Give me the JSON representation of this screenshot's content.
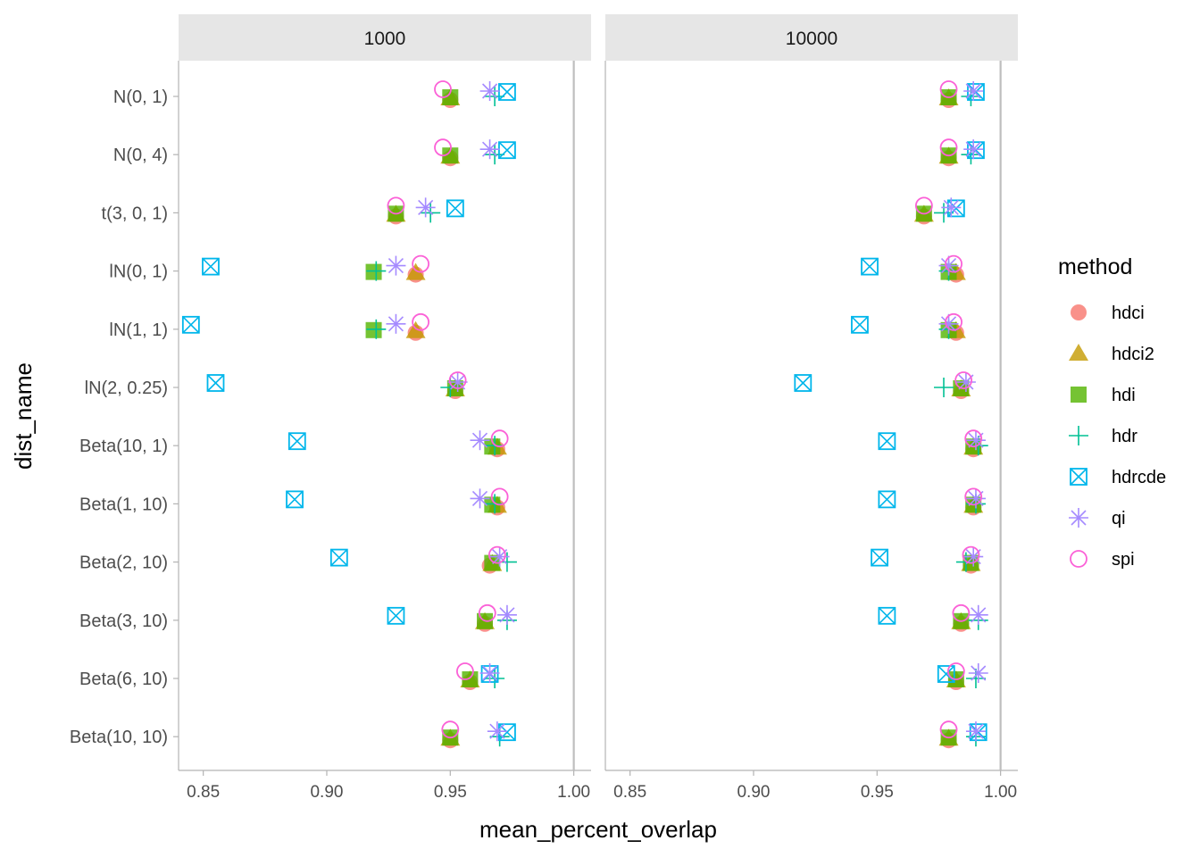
{
  "chart_data": {
    "type": "scatter",
    "x_label": "mean_percent_overlap",
    "y_label": "dist_name",
    "x_ticks": [
      0.85,
      0.9,
      0.95,
      1.0
    ],
    "x_tick_labels": [
      "0.85",
      "0.90",
      "0.95",
      "1.00"
    ],
    "xlim": [
      0.84,
      1.007
    ],
    "reference_line_x": 1.0,
    "grid": false,
    "legend_position": "right",
    "categories": [
      "N(0, 1)",
      "N(0, 4)",
      "t(3, 0, 1)",
      "lN(0, 1)",
      "lN(1, 1)",
      "lN(2, 0.25)",
      "Beta(10, 1)",
      "Beta(1, 10)",
      "Beta(2, 10)",
      "Beta(3, 10)",
      "Beta(6, 10)",
      "Beta(10, 10)"
    ],
    "legend": {
      "title": "method",
      "items": [
        {
          "name": "hdci",
          "shape": "circle-filled",
          "color": "#F8766D"
        },
        {
          "name": "hdci2",
          "shape": "triangle-filled",
          "color": "#C49A00"
        },
        {
          "name": "hdi",
          "shape": "square-filled",
          "color": "#53B400"
        },
        {
          "name": "hdr",
          "shape": "plus",
          "color": "#00C094"
        },
        {
          "name": "hdrcde",
          "shape": "square-cross",
          "color": "#00B6EB"
        },
        {
          "name": "qi",
          "shape": "asterisk",
          "color": "#A58AFF"
        },
        {
          "name": "spi",
          "shape": "circle-open",
          "color": "#FB61D7"
        }
      ]
    },
    "facets": [
      {
        "label": "1000",
        "series": [
          {
            "name": "hdci",
            "values": [
              0.95,
              0.95,
              0.928,
              0.936,
              0.936,
              0.952,
              0.969,
              0.969,
              0.966,
              0.964,
              0.958,
              0.95
            ]
          },
          {
            "name": "hdci2",
            "values": [
              0.95,
              0.95,
              0.928,
              0.936,
              0.936,
              0.952,
              0.969,
              0.969,
              0.967,
              0.964,
              0.958,
              0.95
            ]
          },
          {
            "name": "hdi",
            "values": [
              0.95,
              0.95,
              0.928,
              0.919,
              0.919,
              0.952,
              0.967,
              0.967,
              0.967,
              0.964,
              0.958,
              0.95
            ]
          },
          {
            "name": "hdr",
            "values": [
              0.968,
              0.968,
              0.942,
              0.92,
              0.92,
              0.95,
              0.968,
              0.968,
              0.973,
              0.973,
              0.968,
              0.97
            ]
          },
          {
            "name": "hdrcde",
            "values": [
              0.973,
              0.973,
              0.952,
              0.853,
              0.845,
              0.855,
              0.888,
              0.887,
              0.905,
              0.928,
              0.966,
              0.973
            ]
          },
          {
            "name": "qi",
            "values": [
              0.966,
              0.966,
              0.94,
              0.928,
              0.928,
              0.953,
              0.962,
              0.962,
              0.97,
              0.973,
              0.966,
              0.969
            ]
          },
          {
            "name": "spi",
            "values": [
              0.947,
              0.947,
              0.928,
              0.938,
              0.938,
              0.953,
              0.97,
              0.97,
              0.969,
              0.965,
              0.956,
              0.95
            ]
          }
        ]
      },
      {
        "label": "10000",
        "series": [
          {
            "name": "hdci",
            "values": [
              0.979,
              0.979,
              0.969,
              0.982,
              0.982,
              0.984,
              0.989,
              0.989,
              0.988,
              0.984,
              0.982,
              0.979
            ]
          },
          {
            "name": "hdci2",
            "values": [
              0.979,
              0.979,
              0.969,
              0.982,
              0.982,
              0.984,
              0.989,
              0.989,
              0.988,
              0.984,
              0.982,
              0.979
            ]
          },
          {
            "name": "hdi",
            "values": [
              0.979,
              0.979,
              0.969,
              0.979,
              0.979,
              0.984,
              0.989,
              0.989,
              0.988,
              0.984,
              0.982,
              0.979
            ]
          },
          {
            "name": "hdr",
            "values": [
              0.988,
              0.988,
              0.977,
              0.979,
              0.979,
              0.977,
              0.991,
              0.99,
              0.986,
              0.991,
              0.99,
              0.99
            ]
          },
          {
            "name": "hdrcde",
            "values": [
              0.99,
              0.99,
              0.982,
              0.947,
              0.943,
              0.92,
              0.954,
              0.954,
              0.951,
              0.954,
              0.978,
              0.991
            ]
          },
          {
            "name": "qi",
            "values": [
              0.989,
              0.989,
              0.98,
              0.979,
              0.979,
              0.986,
              0.99,
              0.99,
              0.989,
              0.991,
              0.991,
              0.99
            ]
          },
          {
            "name": "spi",
            "values": [
              0.979,
              0.979,
              0.969,
              0.981,
              0.981,
              0.985,
              0.989,
              0.989,
              0.988,
              0.984,
              0.982,
              0.979
            ]
          }
        ]
      }
    ]
  }
}
